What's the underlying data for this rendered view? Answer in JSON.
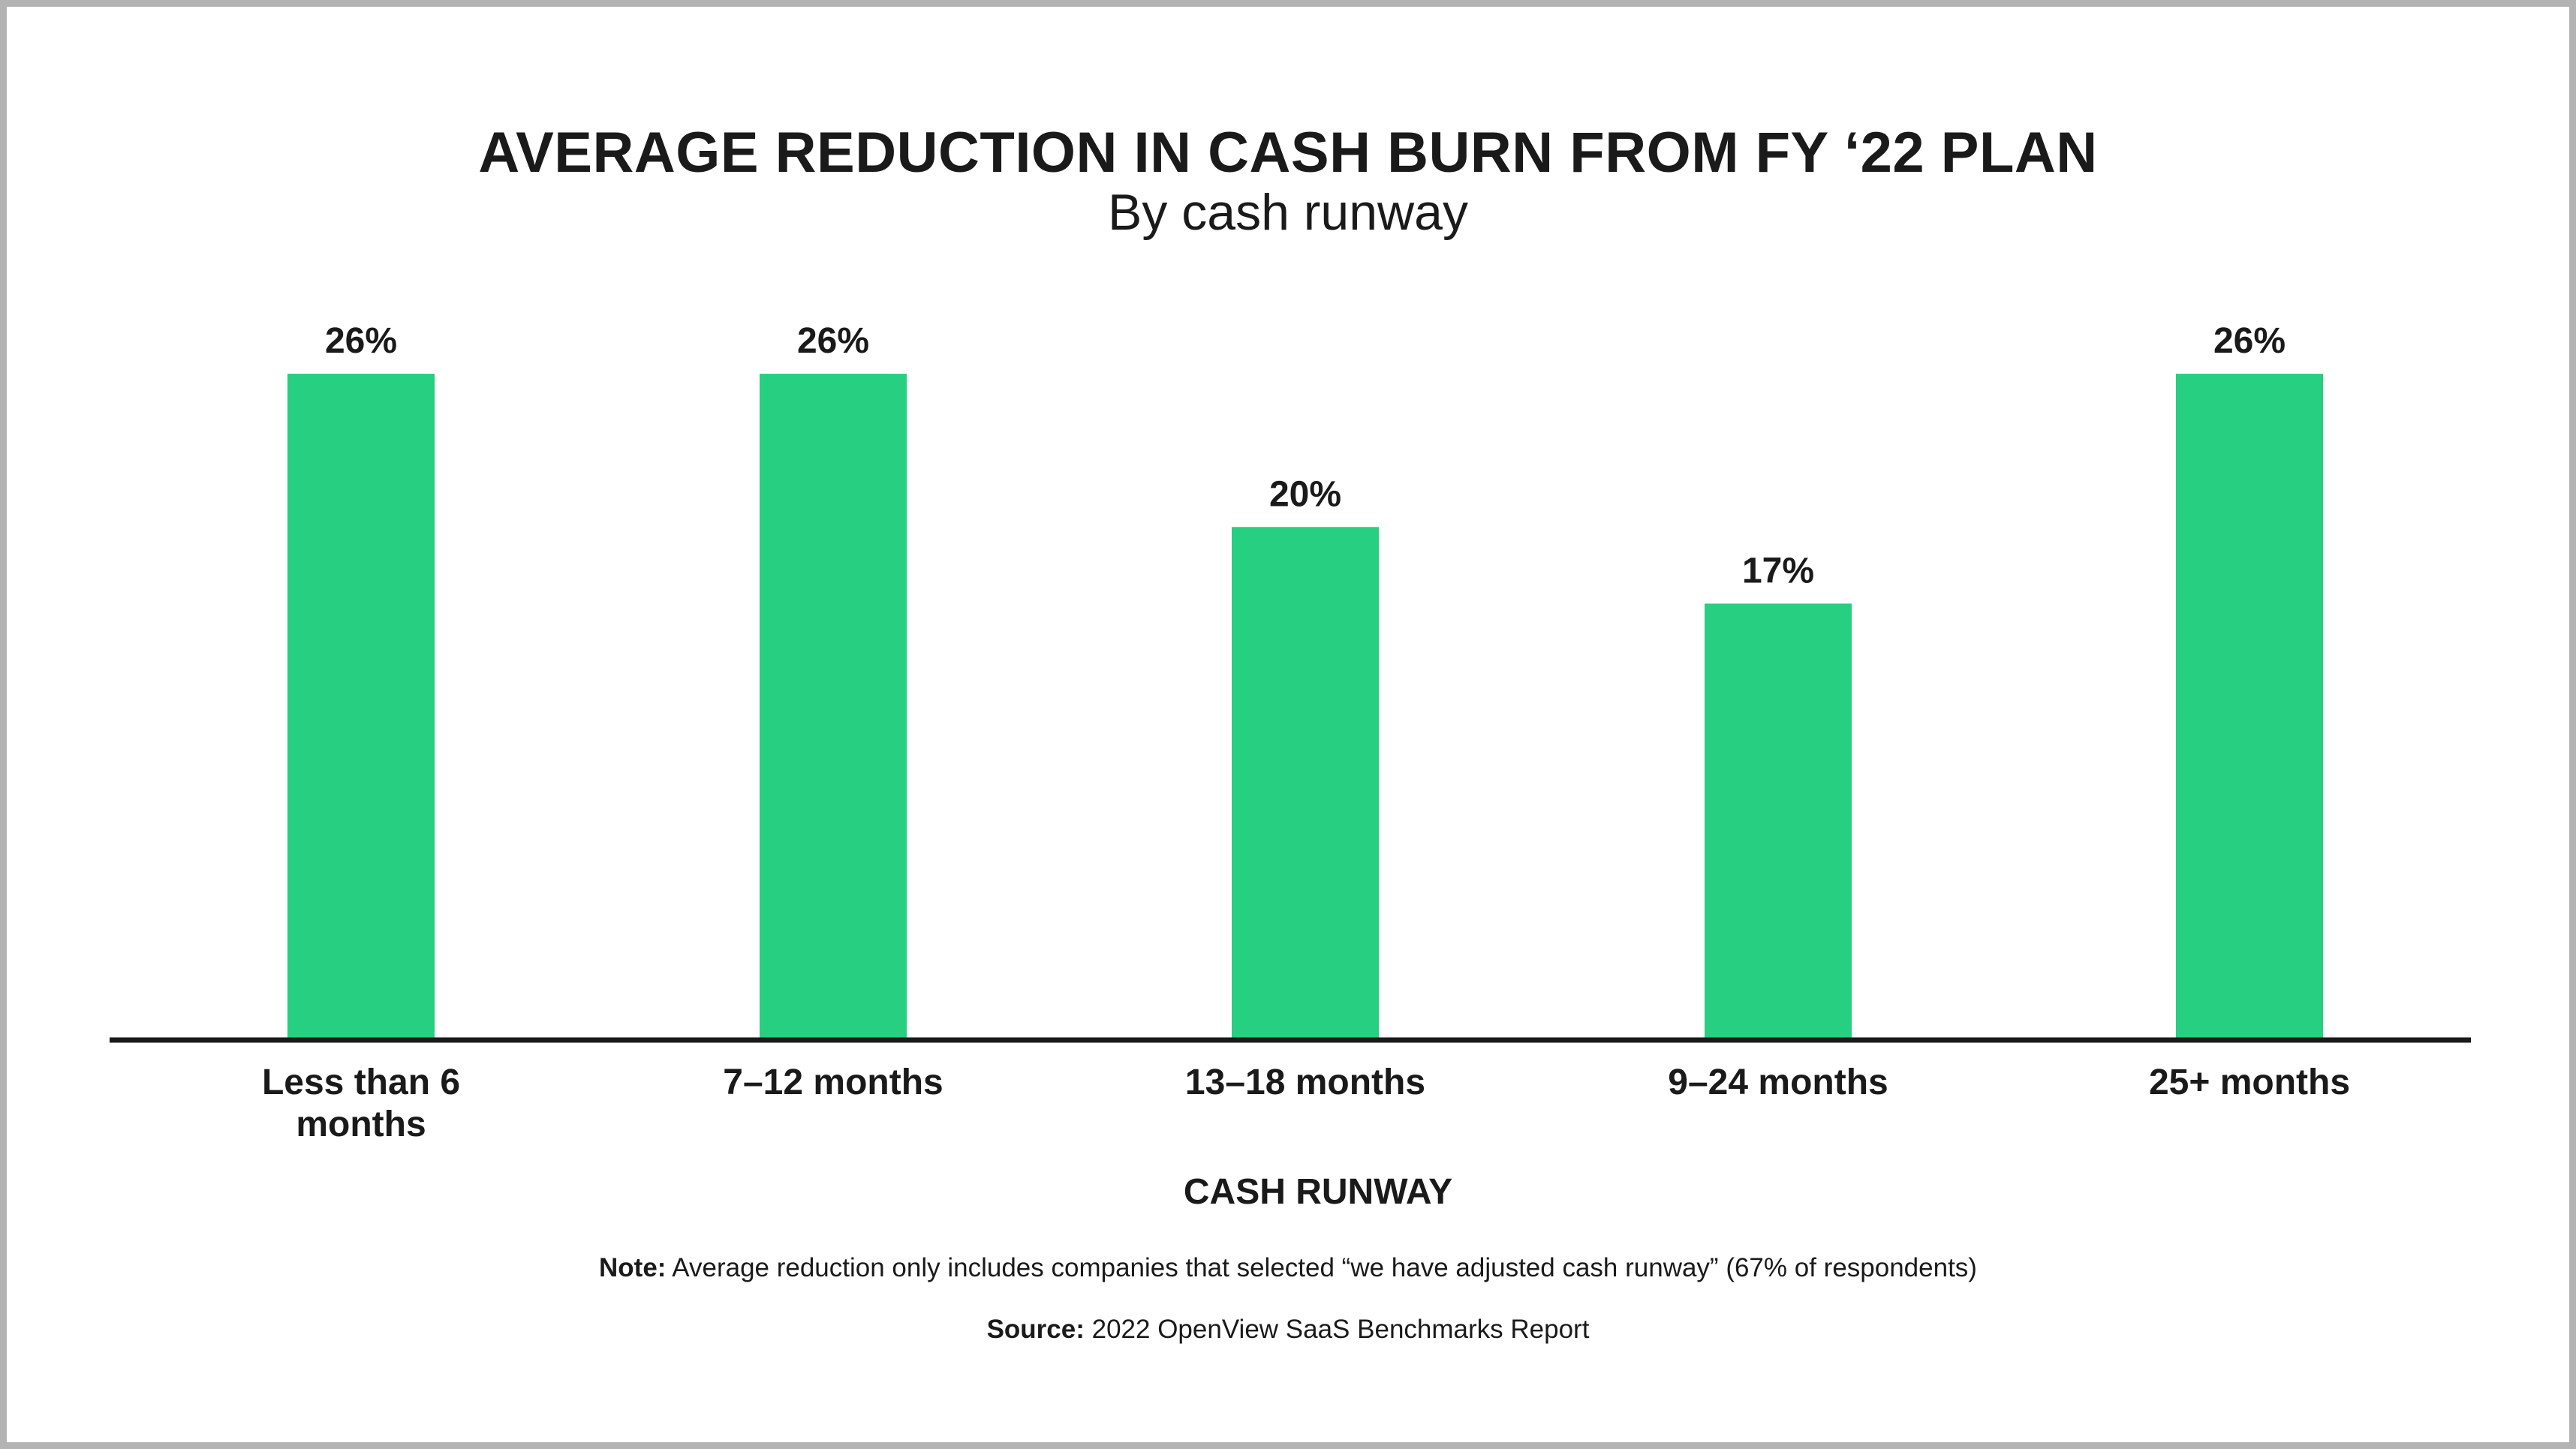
{
  "chart_data": {
    "type": "bar",
    "title": "AVERAGE REDUCTION IN CASH BURN FROM FY ‘22 PLAN",
    "subtitle": "By cash runway",
    "xlabel": "CASH RUNWAY",
    "ylabel": "",
    "categories": [
      "Less than 6 months",
      "7–12 months",
      "13–18 months",
      "9–24 months",
      "25+ months"
    ],
    "values": [
      26,
      26,
      20,
      17,
      26
    ],
    "value_labels": [
      "26%",
      "26%",
      "20%",
      "17%",
      "26%"
    ],
    "unit": "%",
    "ylim": [
      0,
      28
    ],
    "grid": false,
    "legend": "none",
    "bar_color": "#27cf80"
  },
  "footer": {
    "note_label": "Note:",
    "note_text": "Average reduction only includes companies that selected “we have adjusted cash runway” (67% of respondents)",
    "source_label": "Source:",
    "source_text": "2022 OpenView SaaS Benchmarks Report"
  }
}
